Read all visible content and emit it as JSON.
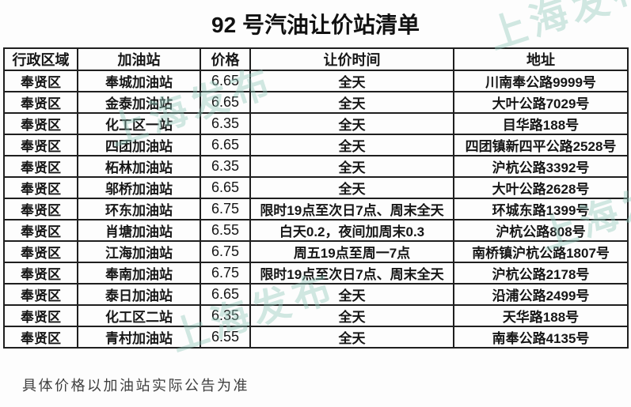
{
  "title": "92 号汽油让价站清单",
  "watermark": {
    "text": "上海发布",
    "color": "#93c9bc"
  },
  "table": {
    "headers": [
      "行政区域",
      "加油站",
      "价格",
      "让价时间",
      "地址"
    ],
    "column_names": [
      "district",
      "station",
      "price",
      "discount_time",
      "address"
    ],
    "rows": [
      [
        "奉贤区",
        "奉城加油站",
        "6.65",
        "全天",
        "川南奉公路9999号"
      ],
      [
        "奉贤区",
        "金泰加油站",
        "6.65",
        "全天",
        "大叶公路7029号"
      ],
      [
        "奉贤区",
        "化工区一站",
        "6.35",
        "全天",
        "目华路188号"
      ],
      [
        "奉贤区",
        "四团加油站",
        "6.65",
        "全天",
        "四团镇新四平公路2528号"
      ],
      [
        "奉贤区",
        "柘林加油站",
        "6.35",
        "全天",
        "沪杭公路3392号"
      ],
      [
        "奉贤区",
        "邬桥加油站",
        "6.65",
        "全天",
        "大叶公路2628号"
      ],
      [
        "奉贤区",
        "环东加油站",
        "6.75",
        "限时19点至次日7点、周末全天",
        "环城东路1399号"
      ],
      [
        "奉贤区",
        "肖塘加油站",
        "6.55",
        "白天0.2，夜间加周末0.3",
        "沪杭公路808号"
      ],
      [
        "奉贤区",
        "江海加油站",
        "6.75",
        "周五19点至周一7点",
        "南桥镇沪杭公路1807号"
      ],
      [
        "奉贤区",
        "奉南加油站",
        "6.75",
        "限时19点至次日7点、周末全天",
        "沪杭公路2178号"
      ],
      [
        "奉贤区",
        "泰日加油站",
        "6.65",
        "全天",
        "沿浦公路2499号"
      ],
      [
        "奉贤区",
        "化工区二站",
        "6.35",
        "全天",
        "天华路188号"
      ],
      [
        "奉贤区",
        "青村加油站",
        "6.55",
        "全天",
        "南奉公路4135号"
      ]
    ]
  },
  "footer_note": "具体价格以加油站实际公告为准"
}
